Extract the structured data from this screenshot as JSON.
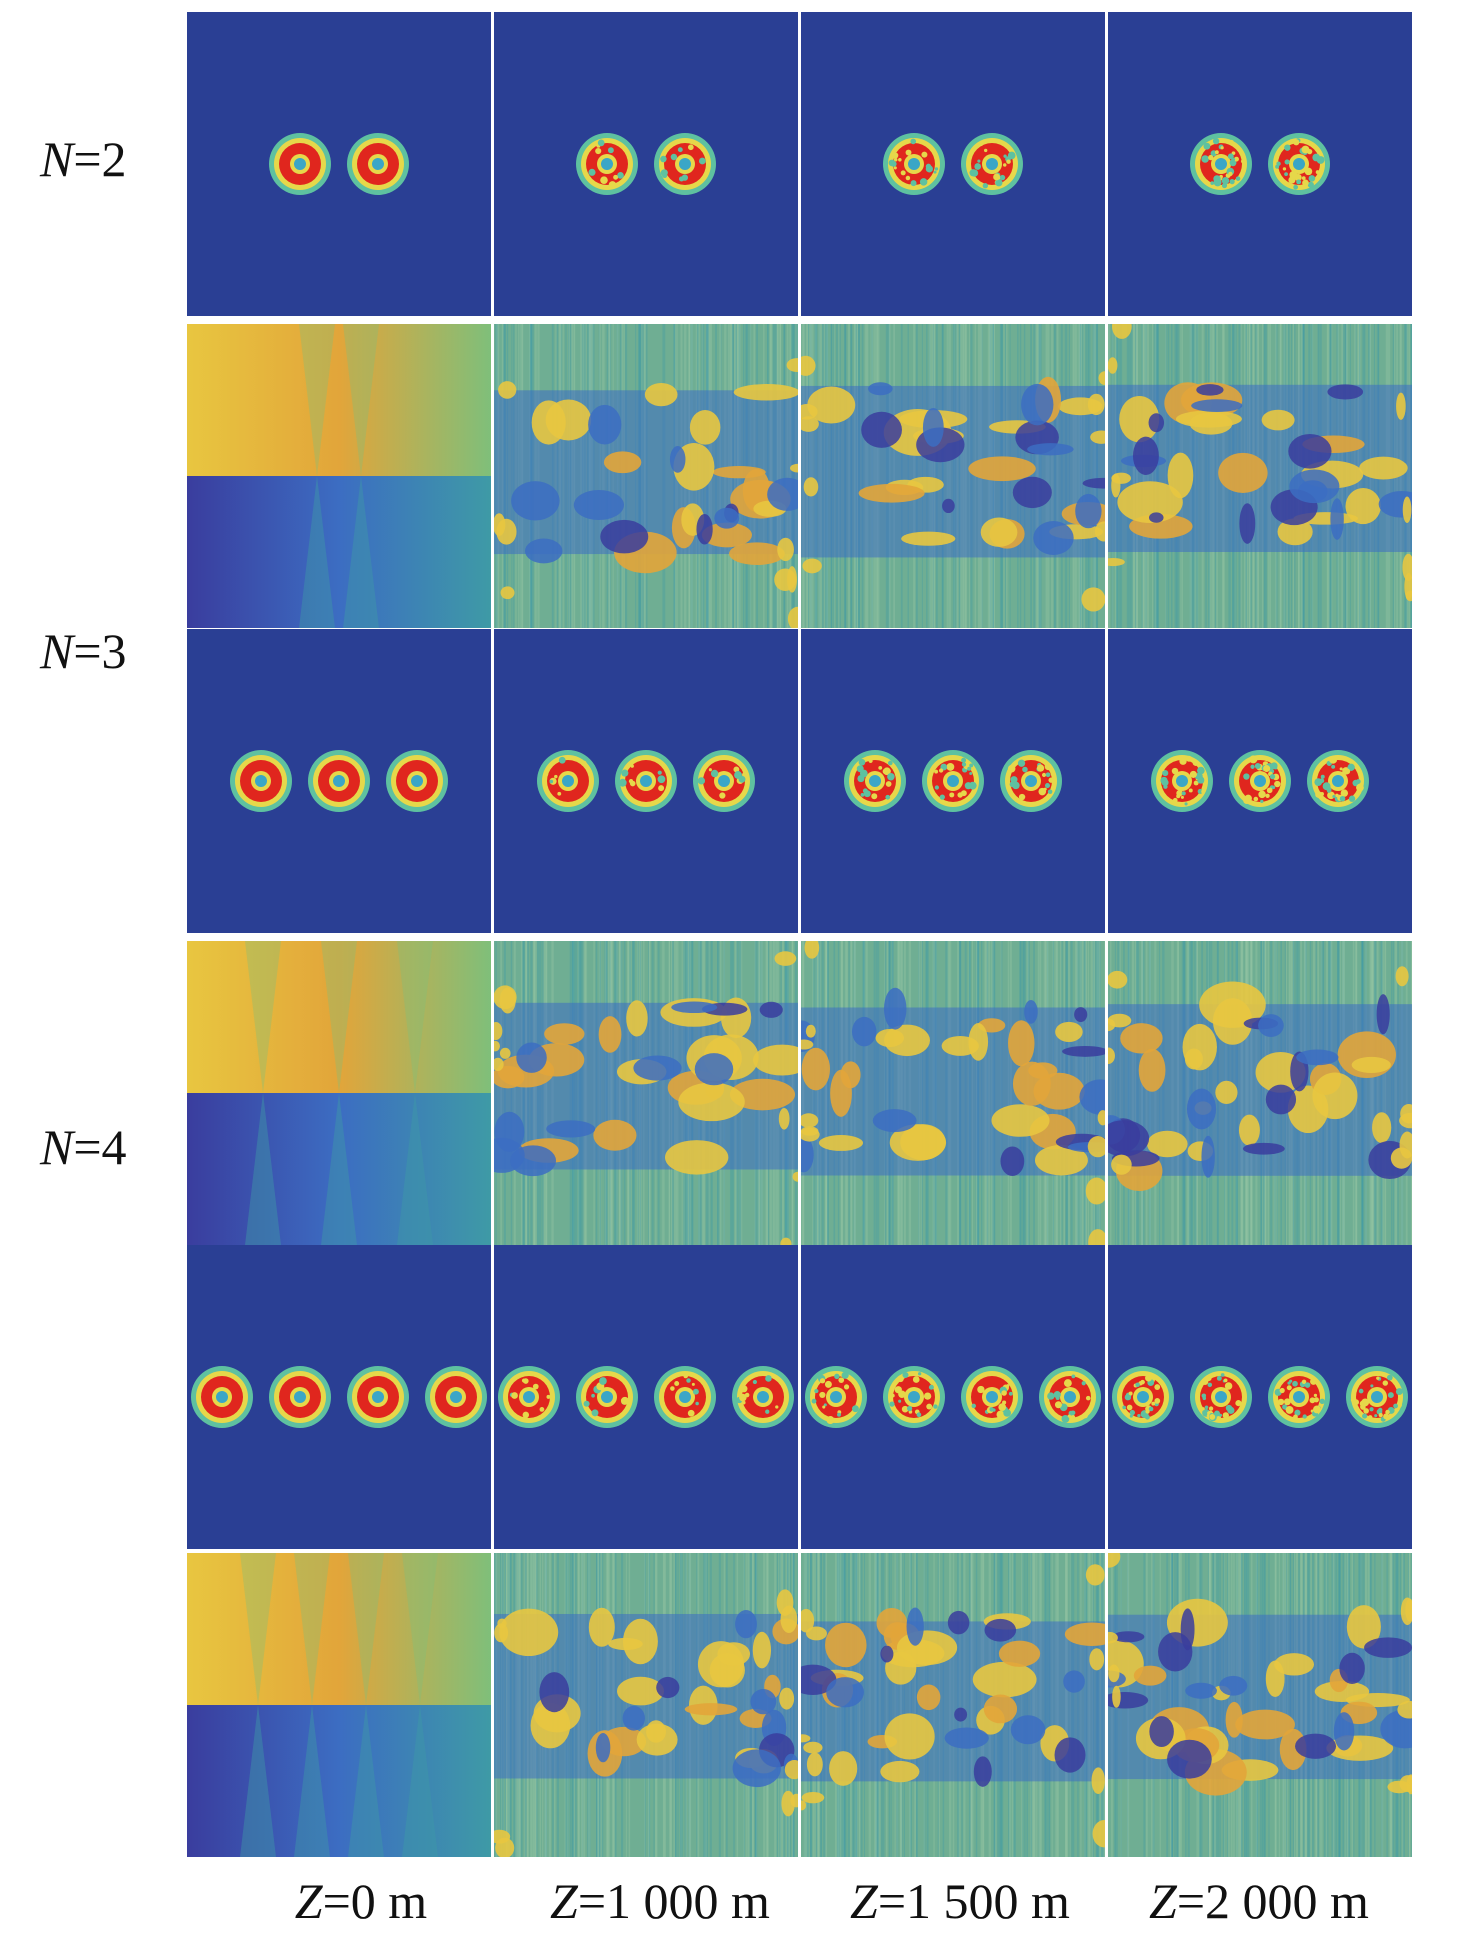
{
  "rows": [
    {
      "label_var": "N",
      "label_eq": "=2",
      "n": 2
    },
    {
      "label_var": "N",
      "label_eq": "=3",
      "n": 3
    },
    {
      "label_var": "N",
      "label_eq": "=4",
      "n": 4
    }
  ],
  "columns": [
    {
      "label_var": "Z",
      "label_eq": "=0 m",
      "z": 0
    },
    {
      "label_var": "Z",
      "label_eq": "=1 000 m",
      "z": 1000
    },
    {
      "label_var": "Z",
      "label_eq": "=1 500 m",
      "z": 1500
    },
    {
      "label_var": "Z",
      "label_eq": "=2 000 m",
      "z": 2000
    }
  ],
  "colors": {
    "background_blue": "#2a3f94",
    "ring_outer": "#5ec1a0",
    "ring_yellow": "#e6d84a",
    "ring_red": "#e0261e",
    "core_cyan": "#3aa6c7",
    "phase_yellow": "#e8c640",
    "phase_orange": "#e2a53a",
    "phase_green": "#7fbf7a",
    "phase_teal": "#3e9aa6",
    "phase_blue": "#3c6dc2",
    "phase_dark": "#3a3d9e",
    "noise_green": "#6fae93"
  }
}
